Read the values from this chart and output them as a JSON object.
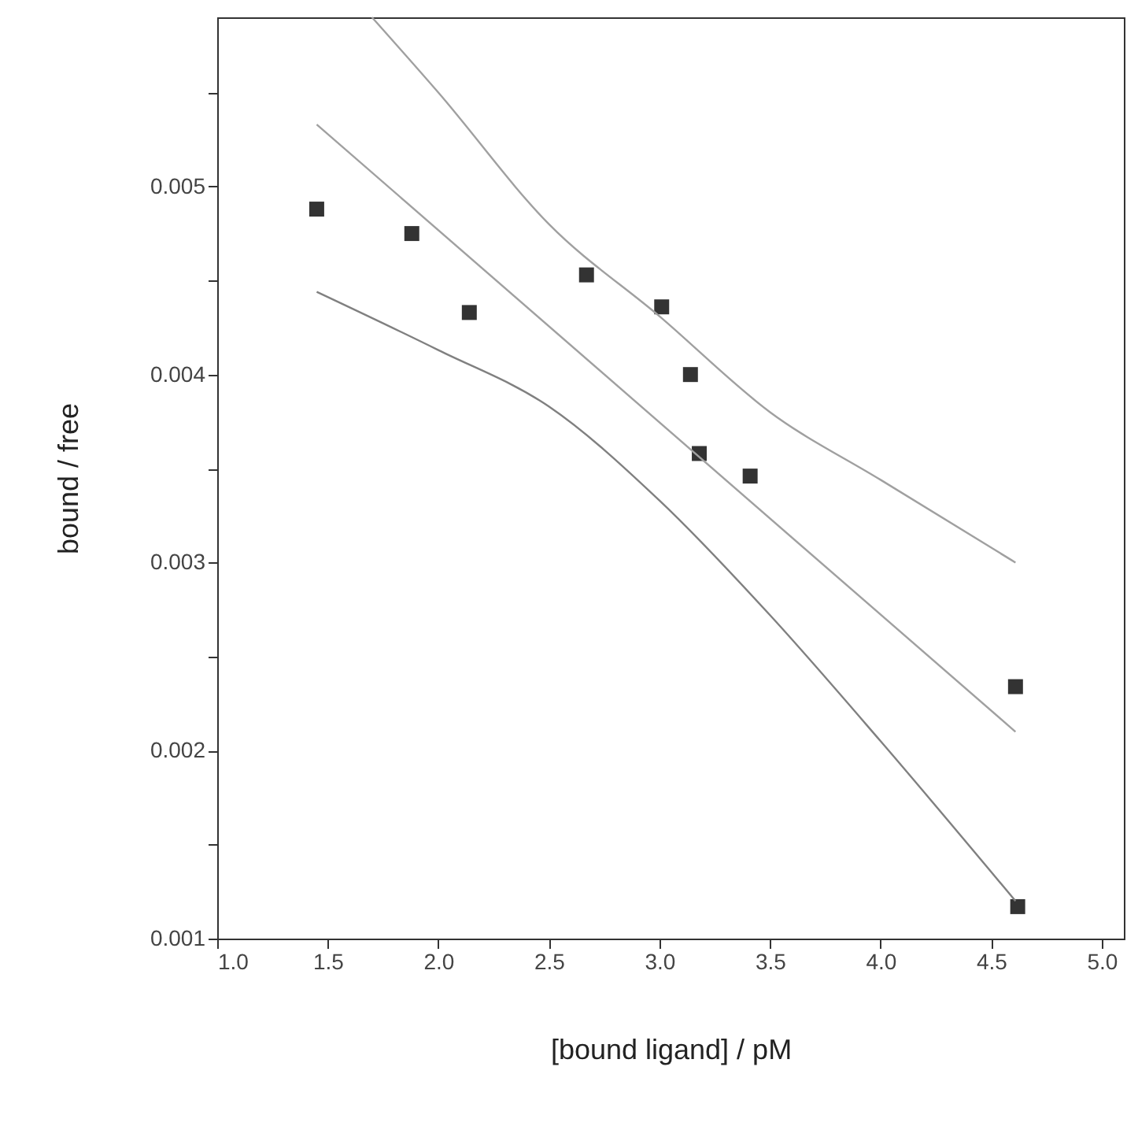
{
  "chart_data": {
    "type": "scatter",
    "xlabel": "[bound ligand] / pM",
    "ylabel": "bound / free",
    "xlim": [
      1.0,
      5.1
    ],
    "ylim": [
      0.001,
      0.0059
    ],
    "xticks": [
      {
        "value": 1,
        "label": "1.0"
      },
      1.5,
      {
        "value": 2,
        "label": "2.0"
      },
      2.5,
      {
        "value": 3,
        "label": "3.0"
      },
      3.5,
      {
        "value": 4,
        "label": "4.0"
      },
      4.5,
      {
        "value": 5,
        "label": "5.0"
      }
    ],
    "yticks": [
      0.001,
      {
        "value": 0.0015,
        "label": null
      },
      0.002,
      {
        "value": 0.0025,
        "label": null
      },
      0.003,
      {
        "value": 0.0035,
        "label": null
      },
      0.004,
      {
        "value": 0.0045,
        "label": null
      },
      0.005,
      {
        "value": 0.0055,
        "label": null
      }
    ],
    "grid": false,
    "series": [
      {
        "marker": "square",
        "color": "#333333",
        "x": [
          1.45,
          1.88,
          2.14,
          2.67,
          3.01,
          3.14,
          3.18,
          3.41,
          4.61,
          4.62
        ],
        "values": [
          0.00488,
          0.00475,
          0.00433,
          0.00453,
          0.00436,
          0.004,
          0.00358,
          0.00346,
          0.00234,
          0.00117
        ]
      },
      {
        "type": "line",
        "color": "#a0a0a0",
        "line_style": "solid",
        "x": [
          1.45,
          4.61
        ],
        "values": [
          0.00533,
          0.0021
        ]
      },
      {
        "type": "line",
        "color": "#a0a0a0",
        "line_style": "solid",
        "x": [
          1.7,
          2.0,
          2.5,
          3.0,
          3.5,
          4.0,
          4.61
        ],
        "values": [
          0.0059,
          0.0055,
          0.0048,
          0.00431,
          0.0038,
          0.00344,
          0.003
        ]
      },
      {
        "type": "line",
        "color": "#808080",
        "line_style": "solid",
        "x": [
          1.45,
          2.0,
          2.5,
          3.0,
          3.5,
          4.0,
          4.61
        ],
        "values": [
          0.00444,
          0.00413,
          0.00383,
          0.00333,
          0.00272,
          0.00205,
          0.0012
        ]
      }
    ]
  }
}
